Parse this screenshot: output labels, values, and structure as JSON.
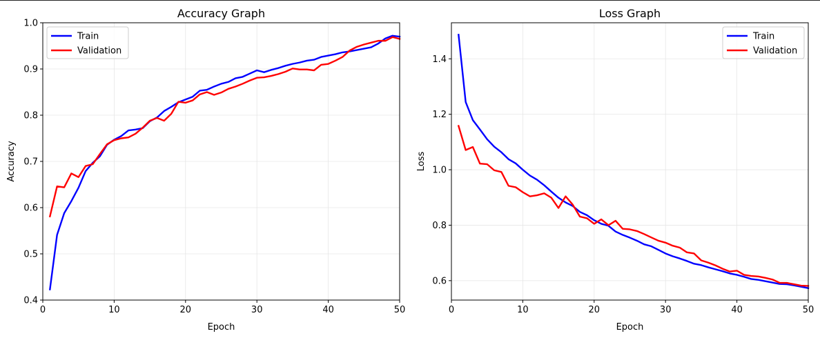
{
  "chart_data": [
    {
      "type": "line",
      "title": "Accuracy Graph",
      "xlabel": "Epoch",
      "ylabel": "Accuracy",
      "xlim": [
        0,
        50
      ],
      "ylim": [
        0.4,
        1.0
      ],
      "xticks": [
        0,
        10,
        20,
        30,
        40,
        50
      ],
      "yticks": [
        0.4,
        0.5,
        0.6,
        0.7,
        0.8,
        0.9,
        1.0
      ],
      "xtick_labels": [
        "0",
        "10",
        "20",
        "30",
        "40",
        "50"
      ],
      "ytick_labels": [
        "0.4",
        "0.5",
        "0.6",
        "0.7",
        "0.8",
        "0.9",
        "1.0"
      ],
      "grid": true,
      "legend_position": "top-left",
      "x": [
        1,
        2,
        3,
        4,
        5,
        6,
        7,
        8,
        9,
        10,
        11,
        12,
        13,
        14,
        15,
        16,
        17,
        18,
        19,
        20,
        21,
        22,
        23,
        24,
        25,
        26,
        27,
        28,
        29,
        30,
        31,
        32,
        33,
        34,
        35,
        36,
        37,
        38,
        39,
        40,
        41,
        42,
        43,
        44,
        45,
        46,
        47,
        48,
        49,
        50
      ],
      "series": [
        {
          "name": "Train",
          "color": "#0000ff",
          "values": [
            0.423,
            0.541,
            0.588,
            0.614,
            0.643,
            0.679,
            0.697,
            0.711,
            0.736,
            0.747,
            0.755,
            0.767,
            0.769,
            0.772,
            0.787,
            0.795,
            0.809,
            0.818,
            0.828,
            0.834,
            0.84,
            0.853,
            0.855,
            0.862,
            0.868,
            0.872,
            0.88,
            0.883,
            0.89,
            0.897,
            0.893,
            0.898,
            0.902,
            0.907,
            0.911,
            0.914,
            0.918,
            0.92,
            0.926,
            0.929,
            0.932,
            0.936,
            0.938,
            0.941,
            0.944,
            0.947,
            0.955,
            0.966,
            0.972,
            0.97
          ]
        },
        {
          "name": "Validation",
          "color": "#ff0000",
          "values": [
            0.581,
            0.646,
            0.644,
            0.674,
            0.666,
            0.69,
            0.694,
            0.716,
            0.737,
            0.746,
            0.75,
            0.752,
            0.76,
            0.773,
            0.788,
            0.794,
            0.788,
            0.803,
            0.829,
            0.827,
            0.832,
            0.845,
            0.85,
            0.844,
            0.849,
            0.857,
            0.862,
            0.868,
            0.875,
            0.881,
            0.882,
            0.885,
            0.889,
            0.894,
            0.901,
            0.899,
            0.899,
            0.897,
            0.909,
            0.911,
            0.918,
            0.926,
            0.94,
            0.948,
            0.953,
            0.957,
            0.961,
            0.961,
            0.969,
            0.965
          ]
        }
      ]
    },
    {
      "type": "line",
      "title": "Loss Graph",
      "xlabel": "Epoch",
      "ylabel": "Loss",
      "xlim": [
        0,
        50
      ],
      "ylim": [
        0.53,
        1.53
      ],
      "xticks": [
        0,
        10,
        20,
        30,
        40,
        50
      ],
      "yticks": [
        0.6,
        0.8,
        1.0,
        1.2,
        1.4
      ],
      "xtick_labels": [
        "0",
        "10",
        "20",
        "30",
        "40",
        "50"
      ],
      "ytick_labels": [
        "0.6",
        "0.8",
        "1.0",
        "1.2",
        "1.4"
      ],
      "grid": true,
      "legend_position": "top-right",
      "x": [
        1,
        2,
        3,
        4,
        5,
        6,
        7,
        8,
        9,
        10,
        11,
        12,
        13,
        14,
        15,
        16,
        17,
        18,
        19,
        20,
        21,
        22,
        23,
        24,
        25,
        26,
        27,
        28,
        29,
        30,
        31,
        32,
        33,
        34,
        35,
        36,
        37,
        38,
        39,
        40,
        41,
        42,
        43,
        44,
        45,
        46,
        47,
        48,
        49,
        50
      ],
      "series": [
        {
          "name": "Train",
          "color": "#0000ff",
          "values": [
            1.487,
            1.244,
            1.179,
            1.145,
            1.11,
            1.083,
            1.063,
            1.038,
            1.023,
            1.0,
            0.979,
            0.964,
            0.944,
            0.921,
            0.899,
            0.882,
            0.869,
            0.848,
            0.836,
            0.818,
            0.805,
            0.798,
            0.777,
            0.765,
            0.755,
            0.744,
            0.731,
            0.724,
            0.711,
            0.698,
            0.688,
            0.68,
            0.671,
            0.661,
            0.656,
            0.648,
            0.641,
            0.634,
            0.626,
            0.621,
            0.614,
            0.606,
            0.603,
            0.598,
            0.593,
            0.588,
            0.587,
            0.583,
            0.578,
            0.573
          ]
        },
        {
          "name": "Validation",
          "color": "#ff0000",
          "values": [
            1.158,
            1.071,
            1.082,
            1.022,
            1.02,
            0.998,
            0.992,
            0.942,
            0.937,
            0.919,
            0.904,
            0.908,
            0.915,
            0.899,
            0.862,
            0.904,
            0.874,
            0.831,
            0.825,
            0.805,
            0.821,
            0.8,
            0.816,
            0.787,
            0.785,
            0.779,
            0.768,
            0.756,
            0.744,
            0.737,
            0.726,
            0.719,
            0.702,
            0.698,
            0.673,
            0.665,
            0.655,
            0.643,
            0.633,
            0.636,
            0.621,
            0.617,
            0.615,
            0.61,
            0.604,
            0.592,
            0.592,
            0.587,
            0.582,
            0.581
          ]
        }
      ]
    }
  ]
}
